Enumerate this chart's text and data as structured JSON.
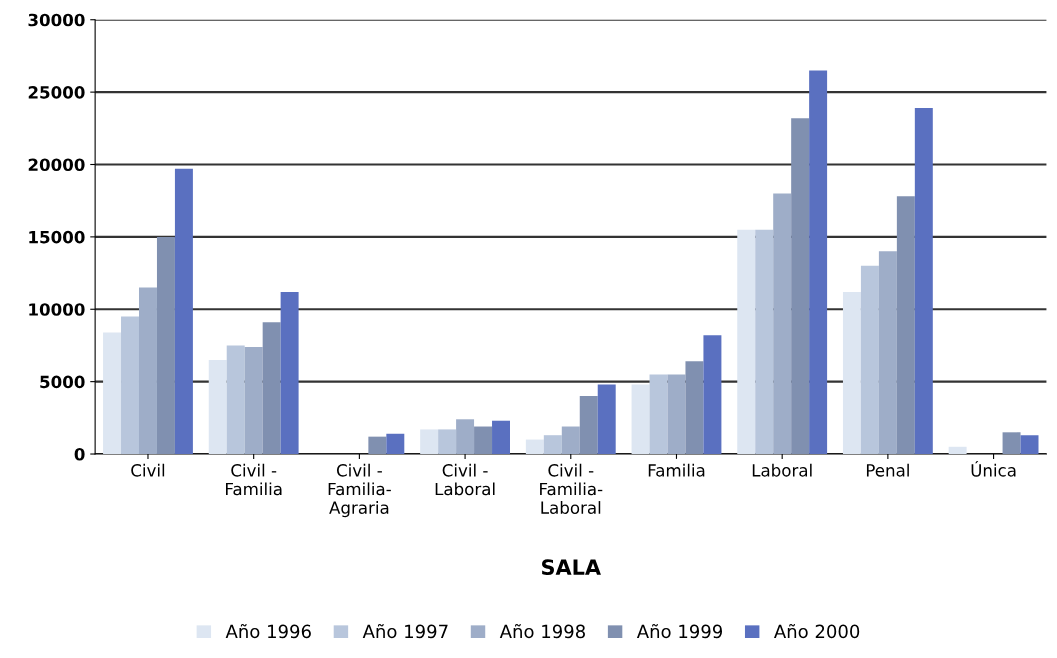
{
  "chart_data": {
    "type": "bar",
    "xlabel": "SALA",
    "categories": [
      "Civil",
      "Civil -\nFamilia",
      "Civil -\nFamilia-\nAgraria",
      "Civil -\nLaboral",
      "Civil -\nFamilia-\nLaboral",
      "Familia",
      "Laboral",
      "Penal",
      "Única"
    ],
    "series": [
      {
        "name": "Año 1996",
        "color": "#dde6f2",
        "values": [
          8400,
          6500,
          0,
          1700,
          1000,
          4800,
          15500,
          11200,
          500
        ]
      },
      {
        "name": "Año 1997",
        "color": "#b8c6dc",
        "values": [
          9500,
          7500,
          0,
          1700,
          1300,
          5500,
          15500,
          13000,
          0
        ]
      },
      {
        "name": "Año 1998",
        "color": "#9eadc8",
        "values": [
          11500,
          7400,
          0,
          2400,
          1900,
          5500,
          18000,
          14000,
          0
        ]
      },
      {
        "name": "Año 1999",
        "color": "#8090b0",
        "values": [
          15000,
          9100,
          1200,
          1900,
          4000,
          6400,
          23200,
          17800,
          1500
        ]
      },
      {
        "name": "Año 2000",
        "color": "#5a70c0",
        "values": [
          19700,
          11200,
          1400,
          2300,
          4800,
          8200,
          26500,
          23900,
          1300
        ]
      }
    ],
    "ylim": [
      0,
      30000
    ],
    "yticks": [
      0,
      5000,
      10000,
      15000,
      20000,
      25000,
      30000
    ],
    "grid": "y",
    "legend": "bottom"
  }
}
